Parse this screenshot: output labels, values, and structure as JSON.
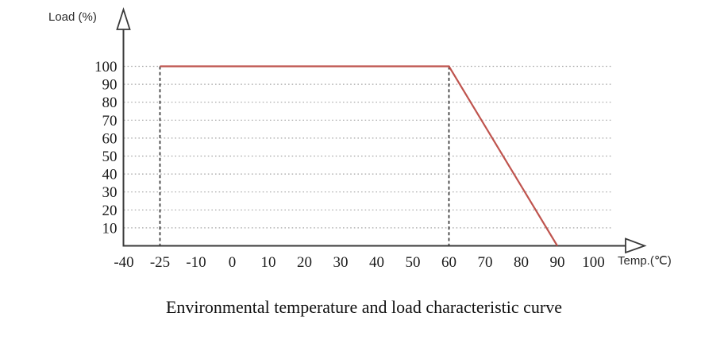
{
  "caption": "Environmental temperature and load characteristic curve",
  "chart_data": {
    "type": "line",
    "title": "Environmental temperature and load characteristic curve",
    "xlabel": "Temp.(℃)",
    "ylabel": "Load (%)",
    "x_tick_values": [
      -40,
      -25,
      -10,
      0,
      10,
      20,
      30,
      40,
      50,
      60,
      70,
      80,
      90,
      100
    ],
    "x_tick_labels": [
      "-40",
      "-25",
      "-10",
      "0",
      "10",
      "20",
      "30",
      "40",
      "50",
      "60",
      "70",
      "80",
      "90",
      "100"
    ],
    "y_ticks": [
      100,
      90,
      80,
      70,
      60,
      50,
      40,
      30,
      20,
      10
    ],
    "ylim": [
      0,
      110
    ],
    "grid": {
      "horizontal": "dotted",
      "vertical": "none"
    },
    "legend": "none",
    "series": [
      {
        "name": "load-vs-ambient-temperature",
        "color": "#bf544e",
        "points": [
          {
            "temp": -25,
            "load": 100
          },
          {
            "temp": 60,
            "load": 100
          },
          {
            "temp": 90,
            "load": 0
          }
        ]
      }
    ],
    "reference_lines": [
      {
        "temp": -25,
        "from_load": 0,
        "to_load": 100,
        "style": "dashed"
      },
      {
        "temp": 60,
        "from_load": 0,
        "to_load": 100,
        "style": "dashed"
      }
    ],
    "colors": {
      "axis": "#3a3a3a",
      "grid": "#a6a6a6",
      "dashed_line": "#2b2b2b",
      "tick_text": "#1c1c1c",
      "curve": "#bf544e",
      "background": "#ffffff"
    }
  }
}
